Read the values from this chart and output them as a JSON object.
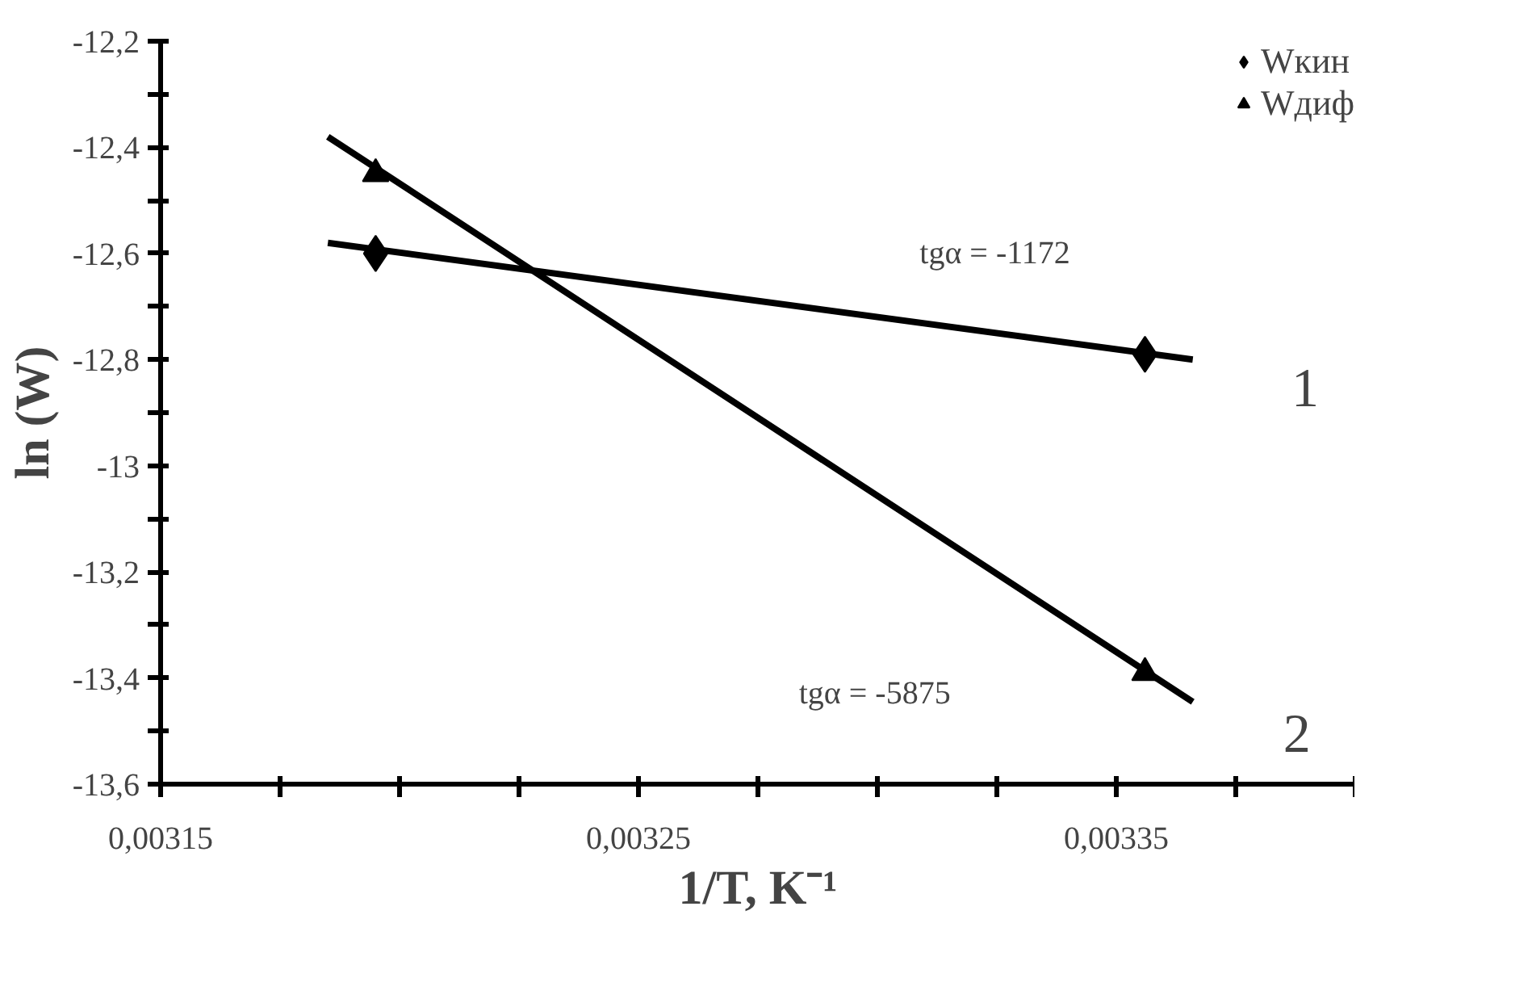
{
  "chart_data": {
    "type": "scatter",
    "xlabel": "1/T, K⁻¹",
    "ylabel": "ln (W)",
    "xlim": [
      0.00315,
      0.0034
    ],
    "ylim": [
      -13.6,
      -12.2
    ],
    "xticks": [
      {
        "value": 0.00315,
        "label": "0,00315"
      },
      {
        "value": 0.003175,
        "label": null
      },
      {
        "value": 0.0032,
        "label": null
      },
      {
        "value": 0.003225,
        "label": null
      },
      {
        "value": 0.00325,
        "label": "0,00325"
      },
      {
        "value": 0.003275,
        "label": null
      },
      {
        "value": 0.0033,
        "label": null
      },
      {
        "value": 0.003325,
        "label": null
      },
      {
        "value": 0.00335,
        "label": "0,00335"
      },
      {
        "value": 0.003375,
        "label": null
      },
      {
        "value": 0.0034,
        "label": null
      }
    ],
    "yticks": [
      {
        "value": -12.2,
        "label": "-12,2"
      },
      {
        "value": -12.3,
        "label": null
      },
      {
        "value": -12.4,
        "label": "-12,4"
      },
      {
        "value": -12.5,
        "label": null
      },
      {
        "value": -12.6,
        "label": "-12,6"
      },
      {
        "value": -12.7,
        "label": null
      },
      {
        "value": -12.8,
        "label": "-12,8"
      },
      {
        "value": -12.9,
        "label": null
      },
      {
        "value": -13,
        "label": "-13"
      },
      {
        "value": -13.1,
        "label": null
      },
      {
        "value": -13.2,
        "label": "-13,2"
      },
      {
        "value": -13.3,
        "label": null
      },
      {
        "value": -13.4,
        "label": "-13,4"
      },
      {
        "value": -13.5,
        "label": null
      },
      {
        "value": -13.6,
        "label": "-13,6"
      }
    ],
    "grid": false,
    "legend": "top right",
    "series": [
      {
        "name": "Wкин",
        "marker": "diamond",
        "color": "#000000",
        "x": [
          0.003195,
          0.003356
        ],
        "values": [
          -12.6,
          -12.79
        ]
      },
      {
        "name": "Wдиф",
        "marker": "triangle",
        "color": "#000000",
        "x": [
          0.003195,
          0.003356
        ],
        "values": [
          -12.45,
          -13.39
        ]
      },
      {
        "type": "line",
        "color": "#000000",
        "x": [
          0.003185,
          0.003366
        ],
        "values": [
          -12.58,
          -12.8
        ]
      },
      {
        "type": "line",
        "color": "#000000",
        "x": [
          0.003185,
          0.003366
        ],
        "values": [
          -12.38,
          -13.445
        ]
      }
    ],
    "annotations": [
      "tgα = -1172",
      "tgα = -5875",
      "1",
      "2"
    ]
  }
}
